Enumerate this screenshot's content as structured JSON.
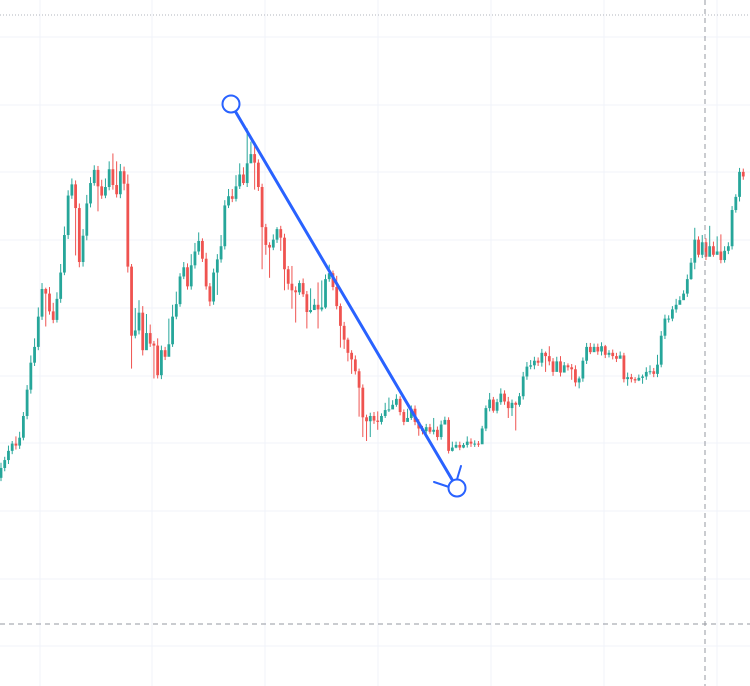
{
  "chart_data": {
    "type": "candlestick",
    "title": "",
    "xlabel": "",
    "ylabel": "",
    "ylim": [
      0,
      100
    ],
    "grid": true,
    "colors": {
      "up": "#26a69a",
      "down": "#ef5350",
      "drawing": "#2962ff",
      "grid": "#f0f3fa",
      "crosshair": "#9598a1"
    },
    "candles": [
      [
        28.9,
        30.4,
        31.2,
        28.4
      ],
      [
        30.4,
        31.6,
        32.1,
        29.9
      ],
      [
        31.6,
        33.0,
        33.8,
        31.0
      ],
      [
        33.0,
        34.1,
        34.5,
        32.5
      ],
      [
        34.1,
        33.8,
        35.2,
        33.2
      ],
      [
        33.8,
        35.0,
        35.9,
        33.3
      ],
      [
        35.0,
        38.3,
        38.9,
        34.6
      ],
      [
        38.3,
        42.3,
        43.0,
        37.8
      ],
      [
        42.3,
        46.4,
        47.5,
        41.7
      ],
      [
        46.4,
        48.8,
        50.1,
        45.9
      ],
      [
        48.8,
        53.4,
        54.8,
        48.3
      ],
      [
        53.4,
        57.6,
        58.5,
        52.9
      ],
      [
        57.6,
        56.9,
        57.8,
        51.9
      ],
      [
        56.9,
        54.2,
        57.9,
        53.7
      ],
      [
        54.2,
        52.9,
        55.5,
        52.4
      ],
      [
        52.9,
        56.1,
        57.1,
        52.5
      ],
      [
        56.1,
        60.1,
        61.4,
        55.5
      ],
      [
        60.1,
        65.8,
        67.1,
        59.7
      ],
      [
        65.8,
        71.8,
        72.6,
        65.2
      ],
      [
        71.8,
        73.5,
        74.4,
        71.3
      ],
      [
        73.5,
        69.9,
        74.1,
        62.7
      ],
      [
        69.9,
        61.7,
        70.6,
        60.9
      ],
      [
        61.7,
        65.7,
        66.7,
        61.0
      ],
      [
        65.7,
        70.6,
        71.9,
        65.0
      ],
      [
        70.6,
        73.7,
        74.6,
        70.0
      ],
      [
        73.7,
        75.7,
        76.4,
        73.3
      ],
      [
        75.7,
        73.2,
        76.3,
        69.4
      ],
      [
        73.2,
        71.8,
        74.2,
        71.3
      ],
      [
        71.8,
        73.1,
        74.4,
        71.4
      ],
      [
        73.1,
        75.8,
        77.0,
        72.6
      ],
      [
        75.8,
        73.4,
        78.2,
        72.7
      ],
      [
        73.4,
        72.0,
        77.0,
        71.5
      ],
      [
        72.0,
        75.5,
        76.6,
        71.4
      ],
      [
        75.5,
        73.6,
        76.2,
        72.6
      ],
      [
        73.6,
        61.0,
        75.0,
        60.1
      ],
      [
        61.0,
        50.5,
        61.4,
        45.5
      ],
      [
        50.5,
        51.3,
        54.7,
        50.1
      ],
      [
        51.3,
        54.0,
        55.9,
        50.7
      ],
      [
        54.0,
        48.3,
        55.0,
        47.5
      ],
      [
        48.3,
        50.9,
        53.8,
        50.4
      ],
      [
        50.9,
        49.3,
        52.2,
        48.8
      ],
      [
        49.3,
        49.0,
        49.7,
        44.0
      ],
      [
        49.0,
        44.5,
        50.1,
        44.0
      ],
      [
        44.5,
        48.3,
        49.0,
        43.9
      ],
      [
        48.3,
        47.3,
        48.8,
        46.8
      ],
      [
        47.3,
        49.2,
        53.1,
        48.6
      ],
      [
        49.2,
        53.4,
        55.2,
        48.8
      ],
      [
        53.4,
        55.3,
        57.2,
        53.0
      ],
      [
        55.3,
        59.5,
        60.0,
        54.9
      ],
      [
        59.5,
        60.9,
        61.7,
        59.1
      ],
      [
        60.9,
        58.0,
        61.5,
        57.5
      ],
      [
        58.0,
        61.2,
        62.9,
        57.5
      ],
      [
        61.2,
        63.3,
        64.6,
        60.7
      ],
      [
        63.3,
        64.9,
        66.2,
        62.8
      ],
      [
        64.9,
        62.2,
        65.3,
        61.7
      ],
      [
        62.2,
        58.0,
        63.1,
        57.5
      ],
      [
        58.0,
        55.7,
        58.5,
        55.0
      ],
      [
        55.7,
        60.1,
        60.7,
        55.2
      ],
      [
        60.1,
        62.1,
        62.9,
        56.7
      ],
      [
        62.1,
        64.1,
        65.8,
        61.6
      ],
      [
        64.1,
        70.3,
        71.1,
        63.6
      ],
      [
        70.3,
        71.7,
        72.8,
        69.9
      ],
      [
        71.7,
        71.3,
        72.8,
        70.8
      ],
      [
        71.3,
        73.2,
        74.9,
        70.9
      ],
      [
        73.2,
        75.0,
        76.7,
        72.8
      ],
      [
        75.0,
        73.7,
        76.1,
        73.4
      ],
      [
        73.7,
        76.7,
        82.0,
        73.1
      ],
      [
        76.7,
        78.1,
        80.0,
        77.2
      ],
      [
        78.1,
        76.8,
        79.9,
        72.7
      ],
      [
        76.8,
        73.1,
        77.3,
        72.5
      ],
      [
        73.1,
        67.0,
        73.6,
        60.6
      ],
      [
        67.0,
        64.3,
        67.5,
        62.8
      ],
      [
        64.3,
        63.9,
        64.7,
        59.3
      ],
      [
        63.9,
        65.1,
        65.9,
        63.5
      ],
      [
        65.1,
        66.7,
        67.0,
        64.6
      ],
      [
        66.7,
        65.4,
        67.2,
        63.4
      ],
      [
        65.4,
        60.6,
        66.0,
        57.4
      ],
      [
        60.6,
        58.4,
        61.1,
        57.5
      ],
      [
        58.4,
        57.4,
        61.1,
        54.6
      ],
      [
        57.4,
        57.1,
        58.0,
        52.5
      ],
      [
        57.1,
        58.5,
        58.9,
        56.7
      ],
      [
        58.5,
        56.8,
        59.2,
        56.4
      ],
      [
        56.8,
        54.1,
        57.3,
        51.6
      ],
      [
        54.1,
        54.4,
        57.7,
        53.9
      ],
      [
        54.4,
        55.2,
        56.1,
        54.8
      ],
      [
        55.2,
        54.5,
        58.6,
        51.6
      ],
      [
        54.5,
        54.8,
        58.9,
        54.2
      ],
      [
        54.8,
        59.1,
        59.8,
        54.6
      ],
      [
        59.1,
        60.0,
        61.3,
        58.7
      ],
      [
        60.0,
        57.9,
        60.4,
        57.4
      ],
      [
        57.9,
        55.0,
        59.6,
        54.5
      ],
      [
        55.0,
        52.0,
        55.4,
        48.7
      ],
      [
        52.0,
        49.9,
        52.6,
        48.5
      ],
      [
        49.9,
        47.9,
        50.2,
        46.6
      ],
      [
        47.9,
        46.9,
        48.3,
        44.7
      ],
      [
        46.9,
        45.1,
        47.5,
        44.6
      ],
      [
        45.1,
        42.6,
        45.5,
        38.2
      ],
      [
        42.6,
        38.1,
        43.1,
        35.1
      ],
      [
        38.1,
        37.5,
        38.5,
        34.5
      ],
      [
        37.5,
        38.3,
        38.8,
        35.1
      ],
      [
        38.3,
        37.6,
        38.9,
        37.1
      ],
      [
        37.6,
        37.4,
        39.0,
        36.2
      ],
      [
        37.4,
        38.3,
        38.7,
        37.0
      ],
      [
        38.3,
        39.2,
        40.3,
        38.0
      ],
      [
        39.2,
        39.3,
        41.1,
        38.9
      ],
      [
        39.3,
        40.0,
        40.7,
        39.8
      ],
      [
        40.0,
        40.9,
        41.6,
        39.7
      ],
      [
        40.9,
        38.9,
        41.3,
        38.4
      ],
      [
        38.9,
        37.4,
        39.3,
        36.9
      ],
      [
        37.4,
        38.0,
        39.4,
        37.6
      ],
      [
        38.0,
        39.4,
        39.9,
        37.7
      ],
      [
        39.4,
        37.4,
        39.9,
        36.9
      ],
      [
        37.4,
        36.4,
        37.8,
        35.3
      ],
      [
        36.4,
        36.0,
        36.8,
        35.5
      ],
      [
        36.0,
        36.6,
        37.1,
        35.6
      ],
      [
        36.6,
        35.9,
        37.1,
        35.6
      ],
      [
        35.9,
        36.2,
        38.0,
        35.5
      ],
      [
        36.2,
        35.1,
        36.7,
        34.6
      ],
      [
        35.1,
        37.0,
        37.6,
        34.7
      ],
      [
        37.0,
        37.7,
        38.2,
        37.2
      ],
      [
        37.7,
        33.0,
        38.1,
        32.6
      ],
      [
        33.0,
        33.5,
        34.4,
        32.9
      ],
      [
        33.5,
        33.9,
        34.4,
        33.4
      ],
      [
        33.9,
        33.5,
        34.4,
        33.1
      ],
      [
        33.5,
        33.9,
        34.2,
        33.4
      ],
      [
        33.9,
        34.4,
        35.2,
        33.5
      ],
      [
        34.4,
        34.1,
        34.9,
        33.6
      ],
      [
        34.1,
        34.1,
        34.6,
        33.6
      ],
      [
        34.1,
        34.0,
        34.5,
        33.6
      ],
      [
        34.0,
        36.4,
        36.8,
        35.9
      ],
      [
        36.4,
        39.5,
        39.9,
        36.0
      ],
      [
        39.5,
        40.8,
        41.8,
        39.0
      ],
      [
        40.8,
        39.1,
        41.2,
        38.8
      ],
      [
        39.1,
        40.4,
        40.9,
        38.7
      ],
      [
        40.4,
        41.7,
        42.5,
        40.0
      ],
      [
        41.7,
        40.5,
        42.2,
        40.0
      ],
      [
        40.5,
        39.5,
        41.2,
        38.0
      ],
      [
        39.5,
        40.3,
        40.8,
        38.3
      ],
      [
        40.3,
        40.0,
        40.5,
        36.1
      ],
      [
        40.0,
        41.3,
        41.8,
        39.7
      ],
      [
        41.3,
        44.3,
        45.0,
        40.8
      ],
      [
        44.3,
        45.8,
        46.5,
        43.8
      ],
      [
        45.8,
        46.0,
        46.8,
        45.4
      ],
      [
        46.0,
        46.7,
        47.3,
        45.4
      ],
      [
        46.7,
        46.4,
        47.2,
        45.9
      ],
      [
        46.4,
        47.9,
        48.5,
        45.8
      ],
      [
        47.9,
        47.4,
        48.1,
        45.0
      ],
      [
        47.4,
        46.6,
        48.9,
        46.0
      ],
      [
        46.6,
        45.0,
        47.1,
        44.4
      ],
      [
        45.0,
        46.6,
        47.3,
        45.3
      ],
      [
        46.6,
        44.9,
        47.4,
        44.3
      ],
      [
        44.9,
        46.0,
        46.5,
        45.5
      ],
      [
        46.0,
        45.7,
        46.3,
        45.2
      ],
      [
        45.7,
        45.4,
        46.2,
        43.8
      ],
      [
        45.4,
        43.4,
        46.0,
        42.8
      ],
      [
        43.4,
        44.0,
        44.3,
        42.5
      ],
      [
        44.0,
        46.7,
        47.2,
        43.5
      ],
      [
        46.7,
        48.8,
        49.4,
        46.2
      ],
      [
        48.8,
        48.0,
        49.4,
        47.7
      ],
      [
        48.0,
        48.8,
        49.3,
        48.4
      ],
      [
        48.8,
        48.1,
        49.3,
        47.6
      ],
      [
        48.1,
        48.9,
        49.5,
        47.5
      ],
      [
        48.9,
        47.6,
        49.1,
        47.1
      ],
      [
        47.6,
        47.9,
        48.3,
        47.2
      ],
      [
        47.9,
        47.4,
        48.4,
        46.9
      ],
      [
        47.4,
        47.0,
        47.9,
        46.5
      ],
      [
        47.0,
        47.5,
        48.1,
        47.1
      ],
      [
        47.5,
        43.9,
        47.9,
        43.4
      ],
      [
        43.9,
        44.2,
        44.9,
        42.9
      ],
      [
        44.2,
        43.9,
        44.7,
        43.4
      ],
      [
        43.9,
        43.7,
        44.2,
        43.3
      ],
      [
        43.7,
        44.1,
        44.6,
        43.6
      ],
      [
        44.1,
        44.3,
        44.6,
        43.2
      ],
      [
        44.3,
        45.0,
        45.7,
        43.8
      ],
      [
        45.0,
        45.1,
        46.0,
        44.6
      ],
      [
        45.1,
        44.7,
        45.6,
        44.2
      ],
      [
        44.7,
        46.1,
        47.6,
        44.2
      ],
      [
        46.1,
        50.5,
        51.2,
        45.7
      ],
      [
        50.5,
        53.1,
        53.7,
        50.0
      ],
      [
        53.1,
        53.1,
        53.6,
        52.5
      ],
      [
        53.1,
        54.5,
        55.0,
        52.7
      ],
      [
        54.5,
        55.2,
        56.1,
        54.0
      ],
      [
        55.2,
        55.9,
        56.5,
        55.7
      ],
      [
        55.9,
        56.9,
        57.4,
        56.5
      ],
      [
        56.9,
        59.1,
        59.8,
        56.4
      ],
      [
        59.1,
        61.6,
        62.3,
        59.0
      ],
      [
        61.6,
        65.1,
        66.9,
        60.6
      ],
      [
        65.1,
        62.8,
        65.6,
        62.4
      ],
      [
        62.8,
        64.7,
        65.8,
        62.3
      ],
      [
        64.7,
        62.5,
        65.3,
        62.0
      ],
      [
        62.5,
        64.1,
        67.2,
        63.4
      ],
      [
        64.1,
        62.8,
        64.8,
        62.5
      ],
      [
        62.8,
        63.3,
        65.6,
        62.8
      ],
      [
        63.3,
        62.0,
        65.9,
        61.5
      ],
      [
        62.0,
        63.4,
        64.1,
        61.6
      ],
      [
        63.4,
        64.1,
        64.7,
        62.9
      ],
      [
        64.1,
        69.6,
        70.2,
        63.6
      ],
      [
        69.6,
        71.6,
        72.0,
        69.2
      ],
      [
        71.6,
        75.4,
        76.0,
        70.9
      ],
      [
        75.4,
        74.7,
        75.9,
        74.2
      ]
    ]
  }
}
